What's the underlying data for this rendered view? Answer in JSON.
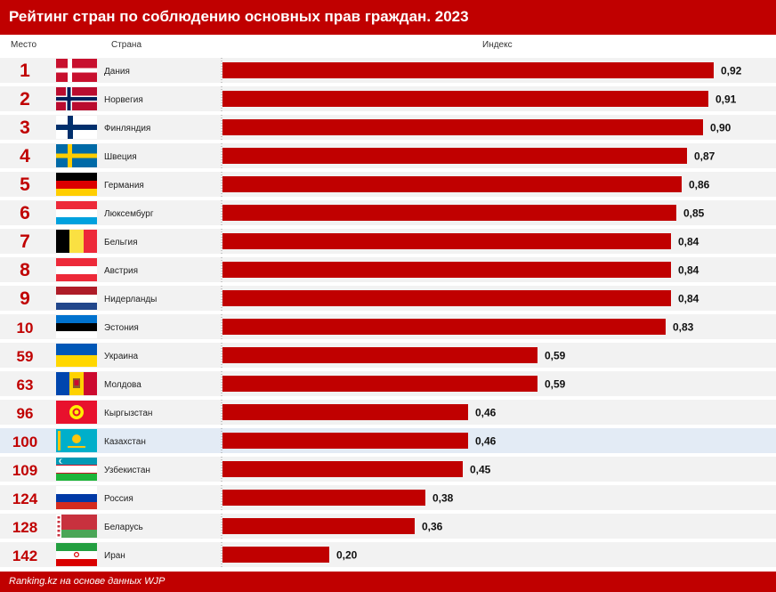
{
  "header": {
    "title": "Рейтинг стран по соблюдению основных прав граждан. 2023"
  },
  "columns": {
    "rank": "Место",
    "country": "Страна",
    "index": "Индекс"
  },
  "footer": {
    "source": "Ranking.kz на основе данных WJP"
  },
  "colors": {
    "bar": "#c00000",
    "rank": "#c00000",
    "row": "#f2f2f2",
    "highlight": "#e3ebf5",
    "header": "#c00000"
  },
  "highlight_country": "Казахстан",
  "chart_data": {
    "type": "bar",
    "orientation": "horizontal",
    "title": "Рейтинг стран по соблюдению основных прав граждан. 2023",
    "xlim": [
      0,
      1
    ],
    "grid": false,
    "value_labels": [
      "0,92",
      "0,91",
      "0,90",
      "0,87",
      "0,86",
      "0,85",
      "0,84",
      "0,84",
      "0,84",
      "0,83",
      "0,59",
      "0,59",
      "0,46",
      "0,46",
      "0,45",
      "0,38",
      "0,36",
      "0,20"
    ],
    "categories": [
      "Дания",
      "Норвегия",
      "Финляндия",
      "Швеция",
      "Германия",
      "Люксембург",
      "Бельгия",
      "Австрия",
      "Нидерланды",
      "Эстония",
      "Украина",
      "Молдова",
      "Кыргызстан",
      "Казахстан",
      "Узбекистан",
      "Россия",
      "Беларусь",
      "Иран"
    ],
    "ranks": [
      "1",
      "2",
      "3",
      "4",
      "5",
      "6",
      "7",
      "8",
      "9",
      "10",
      "59",
      "63",
      "96",
      "100",
      "109",
      "124",
      "128",
      "142"
    ],
    "values": [
      0.92,
      0.91,
      0.9,
      0.87,
      0.86,
      0.85,
      0.84,
      0.84,
      0.84,
      0.83,
      0.59,
      0.59,
      0.46,
      0.46,
      0.45,
      0.38,
      0.36,
      0.2
    ],
    "flags": [
      "flag-denmark",
      "flag-norway",
      "flag-finland",
      "flag-sweden",
      "flag-germany",
      "flag-luxembourg",
      "flag-belgium",
      "flag-austria",
      "flag-netherlands",
      "flag-estonia",
      "flag-ukraine",
      "flag-moldova",
      "flag-kyrgyzstan",
      "flag-kazakhstan",
      "flag-uzbekistan",
      "flag-russia",
      "flag-belarus",
      "flag-iran"
    ]
  }
}
